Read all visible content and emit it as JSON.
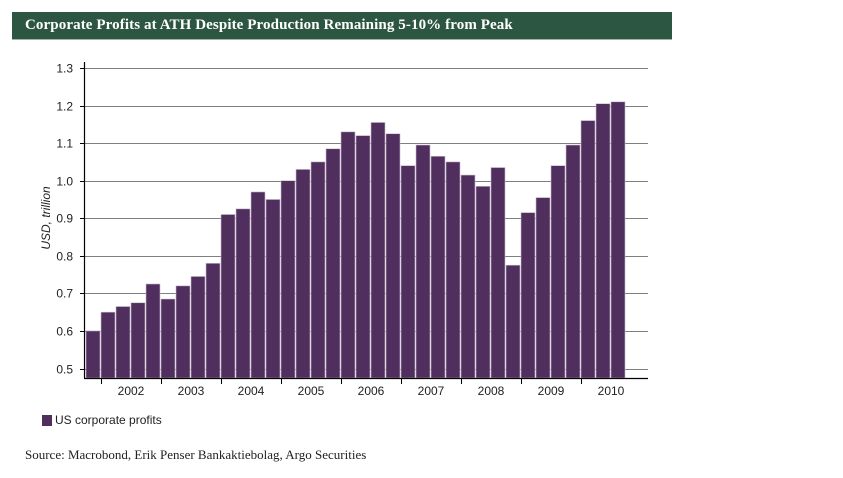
{
  "header": {
    "title": "Corporate Profits at ATH Despite Production Remaining 5-10% from Peak"
  },
  "colors": {
    "title_bg": "#2c5641",
    "bar": "#502e5e",
    "grid": "#7f7f7f"
  },
  "chart_data": {
    "type": "bar",
    "title": "Corporate Profits at ATH Despite Production Remaining 5-10% from Peak",
    "xlabel": "",
    "ylabel": "USD, trillion",
    "ylim": [
      0.5,
      1.3
    ],
    "yticks": [
      "0.5",
      "0.6",
      "0.7",
      "0.8",
      "0.9",
      "1.0",
      "1.1",
      "1.2",
      "1.3"
    ],
    "ytick_values": [
      0.5,
      0.6,
      0.7,
      0.8,
      0.9,
      1.0,
      1.1,
      1.2,
      1.3
    ],
    "xtick_labels": [
      "2002",
      "2003",
      "2004",
      "2005",
      "2006",
      "2007",
      "2008",
      "2009",
      "2010"
    ],
    "grid": true,
    "legend_position": "bottom-left",
    "categories": [
      "2001Q4",
      "2002Q1",
      "2002Q2",
      "2002Q3",
      "2002Q4",
      "2003Q1",
      "2003Q2",
      "2003Q3",
      "2003Q4",
      "2004Q1",
      "2004Q2",
      "2004Q3",
      "2004Q4",
      "2005Q1",
      "2005Q2",
      "2005Q3",
      "2005Q4",
      "2006Q1",
      "2006Q2",
      "2006Q3",
      "2006Q4",
      "2007Q1",
      "2007Q2",
      "2007Q3",
      "2007Q4",
      "2008Q1",
      "2008Q2",
      "2008Q3",
      "2008Q4",
      "2009Q1",
      "2009Q2",
      "2009Q3",
      "2009Q4",
      "2010Q1",
      "2010Q2",
      "2010Q3"
    ],
    "series": [
      {
        "name": "US corporate profits",
        "values": [
          0.6,
          0.65,
          0.665,
          0.675,
          0.725,
          0.685,
          0.72,
          0.745,
          0.78,
          0.91,
          0.925,
          0.97,
          0.95,
          1.0,
          1.03,
          1.05,
          1.085,
          1.13,
          1.12,
          1.155,
          1.125,
          1.04,
          1.095,
          1.065,
          1.05,
          1.015,
          0.985,
          1.035,
          0.775,
          0.915,
          0.955,
          1.04,
          1.095,
          1.16,
          1.205,
          1.21
        ]
      }
    ]
  },
  "legend": {
    "label": "US corporate profits"
  },
  "source": "Source: Macrobond, Erik Penser Bankaktiebolag, Argo Securities"
}
